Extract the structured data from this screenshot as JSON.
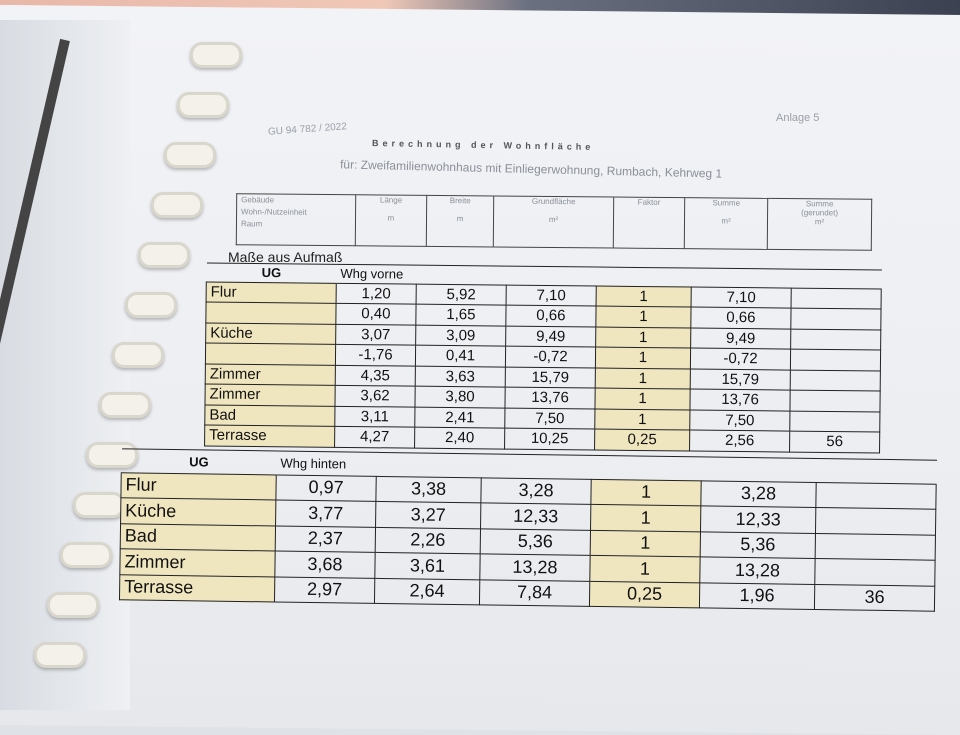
{
  "doc_ref": "GU 94 782 / 2022",
  "annex": "Anlage 5",
  "title": "Berechnung der Wohnfläche",
  "subtitle": "für: Zweifamilienwohnhaus mit Einliegerwohnung, Rumbach, Kehrweg 1",
  "columns": {
    "room": [
      "Gebäude",
      "Wohn-/Nutzeinheit",
      "Raum"
    ],
    "laenge": "Länge",
    "breite": "Breite",
    "grund": "Grundfläche",
    "faktor": "Faktor",
    "summe": "Summe",
    "summe_ger": "Summe",
    "gerundet": "(gerundet)",
    "unit_m": "m",
    "unit_m2": "m²"
  },
  "section_label": "Maße aus Aufmaß",
  "colors": {
    "beige": "#efe5bf"
  },
  "groups": [
    {
      "level": "UG",
      "name": "Whg vorne",
      "total": "56",
      "rows": [
        [
          "Flur",
          "1,20",
          "5,92",
          "7,10",
          "1",
          "7,10"
        ],
        [
          "",
          "0,40",
          "1,65",
          "0,66",
          "1",
          "0,66"
        ],
        [
          "Küche",
          "3,07",
          "3,09",
          "9,49",
          "1",
          "9,49"
        ],
        [
          "",
          "-1,76",
          "0,41",
          "-0,72",
          "1",
          "-0,72"
        ],
        [
          "Zimmer",
          "4,35",
          "3,63",
          "15,79",
          "1",
          "15,79"
        ],
        [
          "Zimmer",
          "3,62",
          "3,80",
          "13,76",
          "1",
          "13,76"
        ],
        [
          "Bad",
          "3,11",
          "2,41",
          "7,50",
          "1",
          "7,50"
        ],
        [
          "Terrasse",
          "4,27",
          "2,40",
          "10,25",
          "0,25",
          "2,56"
        ]
      ]
    },
    {
      "level": "UG",
      "name": "Whg hinten",
      "total": "36",
      "rows": [
        [
          "Flur",
          "0,97",
          "3,38",
          "3,28",
          "1",
          "3,28"
        ],
        [
          "Küche",
          "3,77",
          "3,27",
          "12,33",
          "1",
          "12,33"
        ],
        [
          "Bad",
          "2,37",
          "2,26",
          "5,36",
          "1",
          "5,36"
        ],
        [
          "Zimmer",
          "3,68",
          "3,61",
          "13,28",
          "1",
          "13,28"
        ],
        [
          "Terrasse",
          "2,97",
          "2,64",
          "7,84",
          "0,25",
          "1,96"
        ]
      ]
    }
  ]
}
